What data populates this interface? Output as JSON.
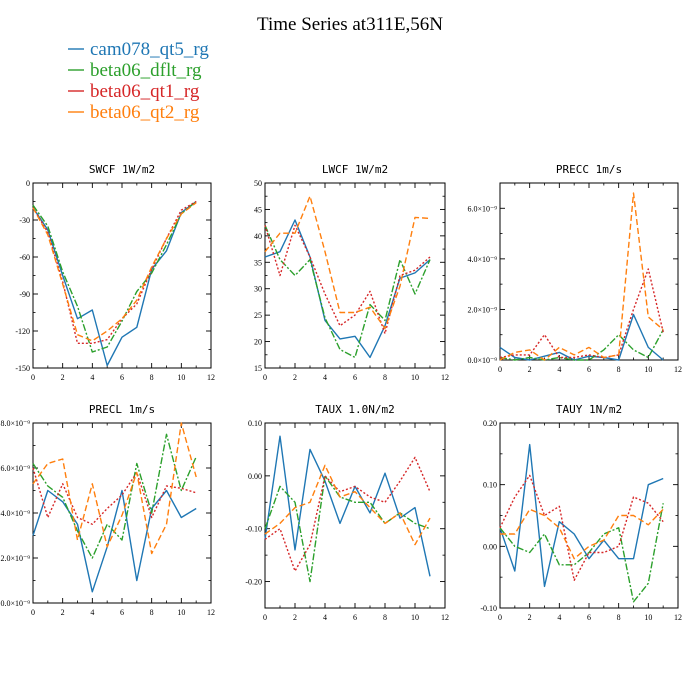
{
  "figure": {
    "title": "Time Series at311E,56N",
    "legend": {
      "placement": "top-left",
      "entries": [
        {
          "label": "cam078_qt5_rg",
          "color": "#1f77b4",
          "dash": "solid"
        },
        {
          "label": "beta06_dflt_rg",
          "color": "#2ca02c",
          "dash": "dashdot"
        },
        {
          "label": "beta06_qt1_rg",
          "color": "#d62728",
          "dash": "dotted"
        },
        {
          "label": "beta06_qt2_rg",
          "color": "#ff7f0e",
          "dash": "dashed"
        }
      ]
    }
  },
  "chart_data": [
    {
      "type": "line",
      "title": "SWCF  1W/m2",
      "x": [
        0,
        1,
        2,
        3,
        4,
        5,
        6,
        7,
        8,
        9,
        10,
        11
      ],
      "xlim": [
        0,
        12
      ],
      "xticks": [
        0,
        2,
        4,
        6,
        8,
        10,
        12
      ],
      "xtick_labels": [
        "0",
        "2",
        "4",
        "6",
        "8",
        "10",
        "12"
      ],
      "ylim": [
        -150,
        0
      ],
      "yticks": [
        -150,
        -120,
        -90,
        -60,
        -30,
        0
      ],
      "ytick_labels": [
        "-150",
        "-120",
        "-90",
        "-60",
        "-30",
        "0"
      ],
      "y_axis_side": "left",
      "series": [
        {
          "values": [
            -20,
            -38,
            -75,
            -110,
            -103,
            -148,
            -125,
            -117,
            -70,
            -55,
            -24,
            -15
          ]
        },
        {
          "values": [
            -18,
            -35,
            -72,
            -100,
            -137,
            -133,
            -112,
            -88,
            -73,
            -50,
            -25,
            -15
          ]
        },
        {
          "values": [
            -20,
            -40,
            -80,
            -130,
            -130,
            -127,
            -110,
            -98,
            -70,
            -45,
            -22,
            -15
          ]
        },
        {
          "values": [
            -20,
            -42,
            -82,
            -123,
            -128,
            -120,
            -110,
            -95,
            -68,
            -45,
            -25,
            -16
          ]
        }
      ]
    },
    {
      "type": "line",
      "title": "LWCF  1W/m2",
      "x": [
        0,
        1,
        2,
        3,
        4,
        5,
        6,
        7,
        8,
        9,
        10,
        11
      ],
      "xlim": [
        0,
        12
      ],
      "xticks": [
        0,
        2,
        4,
        6,
        8,
        10,
        12
      ],
      "xtick_labels": [
        "0",
        "2",
        "4",
        "6",
        "8",
        "10",
        "12"
      ],
      "ylim": [
        15,
        50
      ],
      "yticks": [
        15,
        20,
        25,
        30,
        35,
        40,
        45,
        50
      ],
      "ytick_labels": [
        "15",
        "20",
        "25",
        "30",
        "35",
        "40",
        "45",
        "50"
      ],
      "y_axis_side": "left",
      "series": [
        {
          "values": [
            36,
            37,
            43,
            36,
            24,
            20.5,
            21,
            17,
            23,
            32,
            33,
            35.5
          ]
        },
        {
          "values": [
            42,
            35.5,
            32.5,
            35.5,
            24.5,
            18.5,
            17,
            27,
            24,
            35.5,
            29,
            35.5
          ]
        },
        {
          "values": [
            42,
            32.5,
            42,
            36,
            29,
            23,
            25,
            29.5,
            21.5,
            32.5,
            33.5,
            36
          ]
        },
        {
          "values": [
            37,
            40.5,
            40.5,
            47.5,
            37,
            25.5,
            25.5,
            26.5,
            22.5,
            30.5,
            43.5,
            43.3
          ]
        }
      ]
    },
    {
      "type": "line",
      "title": "PRECC  1m/s",
      "x": [
        0,
        1,
        2,
        3,
        4,
        5,
        6,
        7,
        8,
        9,
        10,
        11
      ],
      "xlim": [
        0,
        12
      ],
      "xticks": [
        0,
        2,
        4,
        6,
        8,
        10,
        12
      ],
      "xtick_labels": [
        "0",
        "2",
        "4",
        "6",
        "8",
        "10",
        "12"
      ],
      "ylim": [
        0,
        7e-09
      ],
      "yticks": [
        0,
        2e-09,
        4e-09,
        6e-09
      ],
      "ytick_labels": [
        "0.0×10⁻⁹",
        "2.0×10⁻⁹",
        "4.0×10⁻⁹",
        "6.0×10⁻⁹"
      ],
      "y_axis_side": "left",
      "series": [
        {
          "values": [
            5e-10,
            1e-10,
            0,
            1.5e-10,
            3e-10,
            0,
            1.5e-10,
            1e-10,
            0,
            1.8e-09,
            5e-10,
            0
          ]
        },
        {
          "values": [
            1e-10,
            0,
            1e-10,
            0,
            1e-10,
            0,
            0,
            4e-10,
            1e-09,
            4e-10,
            1e-10,
            1.2e-09
          ]
        },
        {
          "values": [
            1e-10,
            2e-10,
            2e-10,
            1e-09,
            1e-10,
            1e-10,
            2e-10,
            1e-10,
            2e-10,
            2e-09,
            3.6e-09,
            1.1e-09
          ]
        },
        {
          "values": [
            0,
            3e-10,
            4e-10,
            0,
            5e-10,
            2e-10,
            5e-10,
            1e-10,
            2e-10,
            6.6e-09,
            1.7e-09,
            1.2e-09
          ]
        }
      ]
    },
    {
      "type": "line",
      "title": "PRECL  1m/s",
      "x": [
        0,
        1,
        2,
        3,
        4,
        5,
        6,
        7,
        8,
        9,
        10,
        11
      ],
      "xlim": [
        0,
        12
      ],
      "xticks": [
        0,
        2,
        4,
        6,
        8,
        10,
        12
      ],
      "xtick_labels": [
        "0",
        "2",
        "4",
        "6",
        "8",
        "10",
        "12"
      ],
      "ylim": [
        0,
        8e-09
      ],
      "yticks": [
        0,
        2e-09,
        4e-09,
        6e-09,
        8e-09
      ],
      "ytick_labels": [
        "0.0×10⁻⁹",
        "2.0×10⁻⁹",
        "4.0×10⁻⁹",
        "6.0×10⁻⁹",
        "8.0×10⁻⁹"
      ],
      "y_axis_side": "left",
      "series": [
        {
          "values": [
            3e-09,
            5e-09,
            4.5e-09,
            3.5e-09,
            5e-10,
            2.5e-09,
            5e-09,
            1e-09,
            4.2e-09,
            5e-09,
            3.8e-09,
            4.2e-09
          ]
        },
        {
          "values": [
            6.2e-09,
            5.2e-09,
            4.7e-09,
            3.2e-09,
            2e-09,
            3.5e-09,
            2.8e-09,
            6.2e-09,
            4e-09,
            7.5e-09,
            5e-09,
            6.5e-09
          ]
        },
        {
          "values": [
            6e-09,
            3.8e-09,
            5.3e-09,
            3.8e-09,
            3.5e-09,
            4.2e-09,
            4.8e-09,
            5.8e-09,
            3.8e-09,
            5.2e-09,
            5.1e-09,
            4.9e-09
          ]
        },
        {
          "values": [
            5.3e-09,
            6.2e-09,
            6.4e-09,
            2.8e-09,
            5.3e-09,
            2.5e-09,
            3.9e-09,
            5.8e-09,
            2.2e-09,
            3.5e-09,
            8e-09,
            5.6e-09
          ]
        }
      ]
    },
    {
      "type": "line",
      "title": "TAUX  1.0N/m2",
      "x": [
        0,
        1,
        2,
        3,
        4,
        5,
        6,
        7,
        8,
        9,
        10,
        11
      ],
      "xlim": [
        0,
        12
      ],
      "xticks": [
        0,
        2,
        4,
        6,
        8,
        10,
        12
      ],
      "xtick_labels": [
        "0",
        "2",
        "4",
        "6",
        "8",
        "10",
        "12"
      ],
      "ylim": [
        -0.25,
        0.1
      ],
      "yticks": [
        -0.2,
        -0.1,
        0.0,
        0.1
      ],
      "ytick_labels": [
        "-0.20",
        "-0.10",
        "0.00",
        "0.10"
      ],
      "y_axis_side": "left",
      "series": [
        {
          "values": [
            -0.12,
            0.075,
            -0.14,
            0.05,
            -0.01,
            -0.09,
            -0.02,
            -0.07,
            0.005,
            -0.08,
            -0.06,
            -0.19
          ]
        },
        {
          "values": [
            -0.1,
            -0.02,
            -0.05,
            -0.2,
            0.0,
            -0.04,
            -0.05,
            -0.05,
            -0.09,
            -0.07,
            -0.09,
            -0.1
          ]
        },
        {
          "values": [
            -0.12,
            -0.1,
            -0.18,
            -0.13,
            0.0,
            -0.03,
            -0.02,
            -0.04,
            -0.05,
            -0.01,
            0.035,
            -0.03
          ]
        },
        {
          "values": [
            -0.11,
            -0.09,
            -0.06,
            -0.05,
            0.02,
            -0.04,
            -0.03,
            -0.06,
            -0.09,
            -0.07,
            -0.13,
            -0.08
          ]
        }
      ]
    },
    {
      "type": "line",
      "title": "TAUY  1N/m2",
      "x": [
        0,
        1,
        2,
        3,
        4,
        5,
        6,
        7,
        8,
        9,
        10,
        11
      ],
      "xlim": [
        0,
        12
      ],
      "xticks": [
        0,
        2,
        4,
        6,
        8,
        10,
        12
      ],
      "xtick_labels": [
        "0",
        "2",
        "4",
        "6",
        "8",
        "10",
        "12"
      ],
      "ylim": [
        -0.1,
        0.2
      ],
      "yticks": [
        -0.1,
        0.0,
        0.1,
        0.2
      ],
      "ytick_labels": [
        "-0.10",
        "0.00",
        "0.10",
        "0.20"
      ],
      "y_axis_side": "left",
      "series": [
        {
          "values": [
            0.03,
            -0.04,
            0.165,
            -0.065,
            0.04,
            0.02,
            -0.02,
            0.01,
            -0.02,
            -0.02,
            0.1,
            0.11
          ]
        },
        {
          "values": [
            0.03,
            0.0,
            -0.01,
            0.02,
            -0.03,
            -0.03,
            -0.01,
            0.02,
            0.03,
            -0.09,
            -0.06,
            0.07
          ]
        },
        {
          "values": [
            0.03,
            0.08,
            0.115,
            0.05,
            0.065,
            -0.055,
            -0.01,
            -0.01,
            0.0,
            0.08,
            0.07,
            0.04
          ]
        },
        {
          "values": [
            0.02,
            0.02,
            0.06,
            0.05,
            0.03,
            -0.02,
            0.0,
            0.01,
            0.05,
            0.05,
            0.035,
            0.06
          ]
        }
      ]
    }
  ]
}
